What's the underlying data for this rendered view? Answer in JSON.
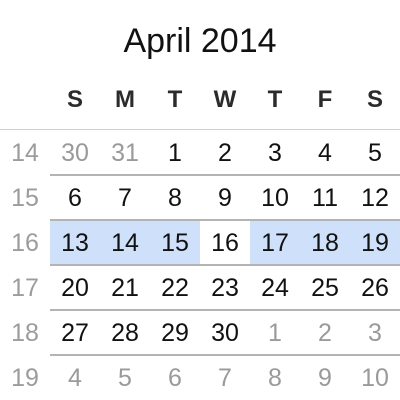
{
  "header": {
    "month_title": "April 2014"
  },
  "weekdays": [
    "S",
    "M",
    "T",
    "W",
    "T",
    "F",
    "S"
  ],
  "weeks": [
    {
      "number": "14",
      "days": [
        {
          "label": "30",
          "current": false,
          "selected": false
        },
        {
          "label": "31",
          "current": false,
          "selected": false
        },
        {
          "label": "1",
          "current": true,
          "selected": false
        },
        {
          "label": "2",
          "current": true,
          "selected": false
        },
        {
          "label": "3",
          "current": true,
          "selected": false
        },
        {
          "label": "4",
          "current": true,
          "selected": false
        },
        {
          "label": "5",
          "current": true,
          "selected": false
        }
      ]
    },
    {
      "number": "15",
      "days": [
        {
          "label": "6",
          "current": true,
          "selected": false
        },
        {
          "label": "7",
          "current": true,
          "selected": false
        },
        {
          "label": "8",
          "current": true,
          "selected": false
        },
        {
          "label": "9",
          "current": true,
          "selected": false
        },
        {
          "label": "10",
          "current": true,
          "selected": false
        },
        {
          "label": "11",
          "current": true,
          "selected": false
        },
        {
          "label": "12",
          "current": true,
          "selected": false
        }
      ]
    },
    {
      "number": "16",
      "days": [
        {
          "label": "13",
          "current": true,
          "selected": true
        },
        {
          "label": "14",
          "current": true,
          "selected": true
        },
        {
          "label": "15",
          "current": true,
          "selected": true
        },
        {
          "label": "16",
          "current": true,
          "selected": false
        },
        {
          "label": "17",
          "current": true,
          "selected": true
        },
        {
          "label": "18",
          "current": true,
          "selected": true
        },
        {
          "label": "19",
          "current": true,
          "selected": true
        }
      ]
    },
    {
      "number": "17",
      "days": [
        {
          "label": "20",
          "current": true,
          "selected": false
        },
        {
          "label": "21",
          "current": true,
          "selected": false
        },
        {
          "label": "22",
          "current": true,
          "selected": false
        },
        {
          "label": "23",
          "current": true,
          "selected": false
        },
        {
          "label": "24",
          "current": true,
          "selected": false
        },
        {
          "label": "25",
          "current": true,
          "selected": false
        },
        {
          "label": "26",
          "current": true,
          "selected": false
        }
      ]
    },
    {
      "number": "18",
      "days": [
        {
          "label": "27",
          "current": true,
          "selected": false
        },
        {
          "label": "28",
          "current": true,
          "selected": false
        },
        {
          "label": "29",
          "current": true,
          "selected": false
        },
        {
          "label": "30",
          "current": true,
          "selected": false
        },
        {
          "label": "1",
          "current": false,
          "selected": false
        },
        {
          "label": "2",
          "current": false,
          "selected": false
        },
        {
          "label": "3",
          "current": false,
          "selected": false
        }
      ]
    },
    {
      "number": "19",
      "days": [
        {
          "label": "4",
          "current": false,
          "selected": false
        },
        {
          "label": "5",
          "current": false,
          "selected": false
        },
        {
          "label": "6",
          "current": false,
          "selected": false
        },
        {
          "label": "7",
          "current": false,
          "selected": false
        },
        {
          "label": "8",
          "current": false,
          "selected": false
        },
        {
          "label": "9",
          "current": false,
          "selected": false
        },
        {
          "label": "10",
          "current": false,
          "selected": false
        }
      ]
    }
  ],
  "colors": {
    "selection": "#cfe0fb",
    "current_month_text": "#111111",
    "other_month_text": "#9a9a9a",
    "week_number_text": "#9c9c9c"
  }
}
